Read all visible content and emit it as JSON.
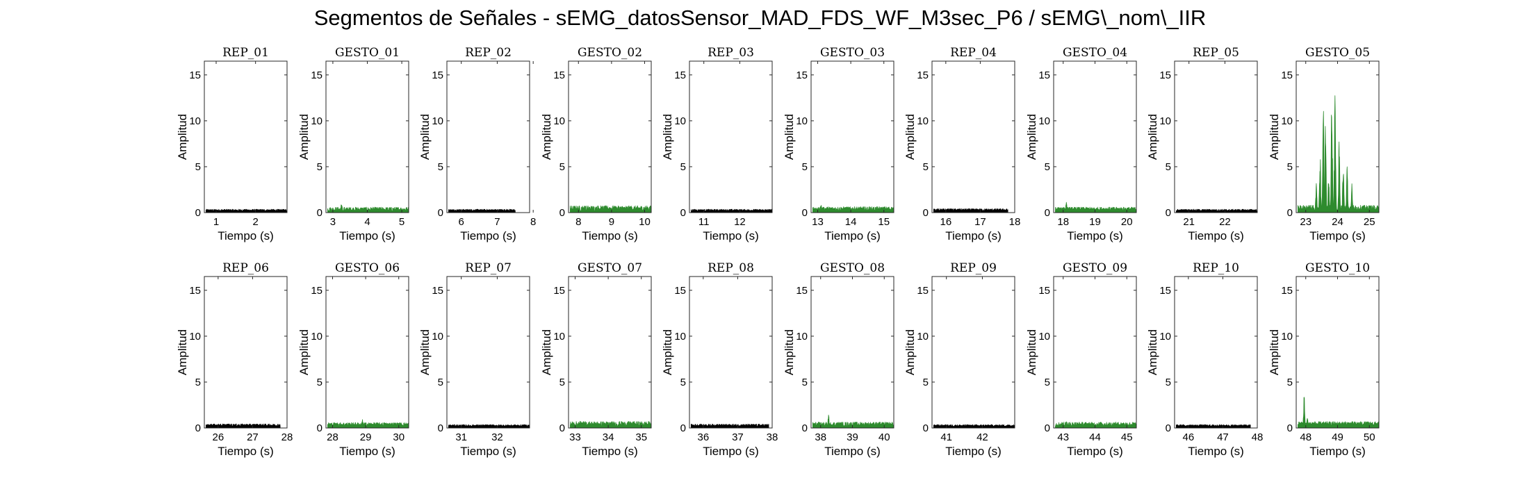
{
  "figure": {
    "title": "Segmentos de Señales - sEMG_datosSensor_MAD_FDS_WF_M3sec_P6 / sEMG\\_nom\\_IIR"
  },
  "colors": {
    "rep": "#000000",
    "gesto": "#2e8b2e"
  },
  "chart_data": [
    {
      "type": "area",
      "title": "REP_01",
      "xlabel": "Tiempo (s)",
      "ylabel": "Amplitud",
      "xlim": [
        0.7,
        2.8
      ],
      "ylim": [
        0,
        16.5
      ],
      "xticks": [
        1,
        2
      ],
      "yticks": [
        0,
        5,
        10,
        15
      ],
      "color": "rep",
      "baseline": 0.25,
      "noise": 0.12,
      "x_end": 2.8,
      "peaks": []
    },
    {
      "type": "area",
      "title": "GESTO_01",
      "xlabel": "Tiempo (s)",
      "ylabel": "Amplitud",
      "xlim": [
        2.8,
        5.2
      ],
      "ylim": [
        0,
        16.5
      ],
      "xticks": [
        3,
        4,
        5
      ],
      "yticks": [
        0,
        5,
        10,
        15
      ],
      "color": "gesto",
      "baseline": 0.35,
      "noise": 0.25,
      "x_end": 5.2,
      "peaks": [
        [
          3.25,
          1.1
        ]
      ]
    },
    {
      "type": "area",
      "title": "REP_02",
      "xlabel": "Tiempo (s)",
      "ylabel": "Amplitud",
      "xlim": [
        5.6,
        7.9
      ],
      "ylim": [
        0,
        16.5
      ],
      "xticks": [
        6,
        7,
        8
      ],
      "yticks": [
        0,
        5,
        10,
        15
      ],
      "color": "rep",
      "baseline": 0.25,
      "noise": 0.12,
      "x_end": 7.5,
      "peaks": []
    },
    {
      "type": "area",
      "title": "GESTO_02",
      "xlabel": "Tiempo (s)",
      "ylabel": "Amplitud",
      "xlim": [
        7.7,
        10.2
      ],
      "ylim": [
        0,
        16.5
      ],
      "xticks": [
        8,
        9,
        10
      ],
      "yticks": [
        0,
        5,
        10,
        15
      ],
      "color": "gesto",
      "baseline": 0.45,
      "noise": 0.3,
      "x_end": 10.2,
      "peaks": [
        [
          8.2,
          0.9
        ],
        [
          8.6,
          0.8
        ]
      ]
    },
    {
      "type": "area",
      "title": "REP_03",
      "xlabel": "Tiempo (s)",
      "ylabel": "Amplitud",
      "xlim": [
        10.6,
        12.9
      ],
      "ylim": [
        0,
        16.5
      ],
      "xticks": [
        11,
        12
      ],
      "yticks": [
        0,
        5,
        10,
        15
      ],
      "color": "rep",
      "baseline": 0.25,
      "noise": 0.12,
      "x_end": 12.9,
      "peaks": []
    },
    {
      "type": "area",
      "title": "GESTO_03",
      "xlabel": "Tiempo (s)",
      "ylabel": "Amplitud",
      "xlim": [
        12.8,
        15.3
      ],
      "ylim": [
        0,
        16.5
      ],
      "xticks": [
        13,
        14,
        15
      ],
      "yticks": [
        0,
        5,
        10,
        15
      ],
      "color": "gesto",
      "baseline": 0.4,
      "noise": 0.25,
      "x_end": 15.3,
      "peaks": [
        [
          13.1,
          1.0
        ]
      ]
    },
    {
      "type": "area",
      "title": "REP_04",
      "xlabel": "Tiempo (s)",
      "ylabel": "Amplitud",
      "xlim": [
        15.6,
        18.0
      ],
      "ylim": [
        0,
        16.5
      ],
      "xticks": [
        16,
        17,
        18
      ],
      "yticks": [
        0,
        5,
        10,
        15
      ],
      "color": "rep",
      "baseline": 0.28,
      "noise": 0.15,
      "x_end": 17.8,
      "peaks": []
    },
    {
      "type": "area",
      "title": "GESTO_04",
      "xlabel": "Tiempo (s)",
      "ylabel": "Amplitud",
      "xlim": [
        17.7,
        20.3
      ],
      "ylim": [
        0,
        16.5
      ],
      "xticks": [
        18,
        19,
        20
      ],
      "yticks": [
        0,
        5,
        10,
        15
      ],
      "color": "gesto",
      "baseline": 0.38,
      "noise": 0.22,
      "x_end": 20.3,
      "peaks": [
        [
          18.1,
          1.3
        ]
      ]
    },
    {
      "type": "area",
      "title": "REP_05",
      "xlabel": "Tiempo (s)",
      "ylabel": "Amplitud",
      "xlim": [
        20.6,
        22.9
      ],
      "ylim": [
        0,
        16.5
      ],
      "xticks": [
        21,
        22
      ],
      "yticks": [
        0,
        5,
        10,
        15
      ],
      "color": "rep",
      "baseline": 0.25,
      "noise": 0.12,
      "x_end": 22.9,
      "peaks": []
    },
    {
      "type": "area",
      "title": "GESTO_05",
      "xlabel": "Tiempo (s)",
      "ylabel": "Amplitud",
      "xlim": [
        22.7,
        25.3
      ],
      "ylim": [
        0,
        16.5
      ],
      "xticks": [
        23,
        24,
        25
      ],
      "yticks": [
        0,
        5,
        10,
        15
      ],
      "color": "gesto",
      "baseline": 0.5,
      "noise": 0.3,
      "x_end": 25.3,
      "peaks": [
        [
          23.33,
          3.5
        ],
        [
          23.45,
          7.0
        ],
        [
          23.55,
          13.0
        ],
        [
          23.62,
          10.5
        ],
        [
          23.72,
          4.0
        ],
        [
          23.82,
          14.5
        ],
        [
          23.92,
          15.0
        ],
        [
          24.05,
          8.0
        ],
        [
          24.18,
          6.5
        ],
        [
          24.3,
          5.5
        ],
        [
          24.45,
          3.5
        ]
      ]
    },
    {
      "type": "area",
      "title": "REP_06",
      "xlabel": "Tiempo (s)",
      "ylabel": "Amplitud",
      "xlim": [
        25.6,
        28.0
      ],
      "ylim": [
        0,
        16.5
      ],
      "xticks": [
        26,
        27,
        28
      ],
      "yticks": [
        0,
        5,
        10,
        15
      ],
      "color": "rep",
      "baseline": 0.3,
      "noise": 0.15,
      "x_end": 27.8,
      "peaks": []
    },
    {
      "type": "area",
      "title": "GESTO_06",
      "xlabel": "Tiempo (s)",
      "ylabel": "Amplitud",
      "xlim": [
        27.8,
        30.3
      ],
      "ylim": [
        0,
        16.5
      ],
      "xticks": [
        28,
        29,
        30
      ],
      "yticks": [
        0,
        5,
        10,
        15
      ],
      "color": "gesto",
      "baseline": 0.38,
      "noise": 0.22,
      "x_end": 30.3,
      "peaks": [
        [
          28.9,
          1.0
        ]
      ]
    },
    {
      "type": "area",
      "title": "REP_07",
      "xlabel": "Tiempo (s)",
      "ylabel": "Amplitud",
      "xlim": [
        30.6,
        32.9
      ],
      "ylim": [
        0,
        16.5
      ],
      "xticks": [
        31,
        32
      ],
      "yticks": [
        0,
        5,
        10,
        15
      ],
      "color": "rep",
      "baseline": 0.25,
      "noise": 0.12,
      "x_end": 32.9,
      "peaks": []
    },
    {
      "type": "area",
      "title": "GESTO_07",
      "xlabel": "Tiempo (s)",
      "ylabel": "Amplitud",
      "xlim": [
        32.8,
        35.3
      ],
      "ylim": [
        0,
        16.5
      ],
      "xticks": [
        33,
        34,
        35
      ],
      "yticks": [
        0,
        5,
        10,
        15
      ],
      "color": "gesto",
      "baseline": 0.42,
      "noise": 0.3,
      "x_end": 35.3,
      "peaks": [
        [
          33.15,
          0.9
        ]
      ]
    },
    {
      "type": "area",
      "title": "REP_08",
      "xlabel": "Tiempo (s)",
      "ylabel": "Amplitud",
      "xlim": [
        35.6,
        38.0
      ],
      "ylim": [
        0,
        16.5
      ],
      "xticks": [
        36,
        37,
        38
      ],
      "yticks": [
        0,
        5,
        10,
        15
      ],
      "color": "rep",
      "baseline": 0.28,
      "noise": 0.15,
      "x_end": 37.9,
      "peaks": []
    },
    {
      "type": "area",
      "title": "GESTO_08",
      "xlabel": "Tiempo (s)",
      "ylabel": "Amplitud",
      "xlim": [
        37.7,
        40.3
      ],
      "ylim": [
        0,
        16.5
      ],
      "xticks": [
        38,
        39,
        40
      ],
      "yticks": [
        0,
        5,
        10,
        15
      ],
      "color": "gesto",
      "baseline": 0.4,
      "noise": 0.25,
      "x_end": 40.3,
      "peaks": [
        [
          38.25,
          1.5
        ]
      ]
    },
    {
      "type": "area",
      "title": "REP_09",
      "xlabel": "Tiempo (s)",
      "ylabel": "Amplitud",
      "xlim": [
        40.6,
        42.9
      ],
      "ylim": [
        0,
        16.5
      ],
      "xticks": [
        41,
        42
      ],
      "yticks": [
        0,
        5,
        10,
        15
      ],
      "color": "rep",
      "baseline": 0.25,
      "noise": 0.12,
      "x_end": 42.9,
      "peaks": []
    },
    {
      "type": "area",
      "title": "GESTO_09",
      "xlabel": "Tiempo (s)",
      "ylabel": "Amplitud",
      "xlim": [
        42.7,
        45.3
      ],
      "ylim": [
        0,
        16.5
      ],
      "xticks": [
        43,
        44,
        45
      ],
      "yticks": [
        0,
        5,
        10,
        15
      ],
      "color": "gesto",
      "baseline": 0.4,
      "noise": 0.25,
      "x_end": 45.3,
      "peaks": [
        [
          43.1,
          1.0
        ]
      ]
    },
    {
      "type": "area",
      "title": "REP_10",
      "xlabel": "Tiempo (s)",
      "ylabel": "Amplitud",
      "xlim": [
        45.6,
        48.0
      ],
      "ylim": [
        0,
        16.5
      ],
      "xticks": [
        46,
        47,
        48
      ],
      "yticks": [
        0,
        5,
        10,
        15
      ],
      "color": "rep",
      "baseline": 0.25,
      "noise": 0.12,
      "x_end": 47.8,
      "peaks": []
    },
    {
      "type": "area",
      "title": "GESTO_10",
      "xlabel": "Tiempo (s)",
      "ylabel": "Amplitud",
      "xlim": [
        47.7,
        50.3
      ],
      "ylim": [
        0,
        16.5
      ],
      "xticks": [
        48,
        49,
        50
      ],
      "yticks": [
        0,
        5,
        10,
        15
      ],
      "color": "gesto",
      "baseline": 0.45,
      "noise": 0.25,
      "x_end": 50.3,
      "peaks": [
        [
          47.95,
          3.8
        ],
        [
          48.05,
          1.2
        ]
      ]
    }
  ]
}
